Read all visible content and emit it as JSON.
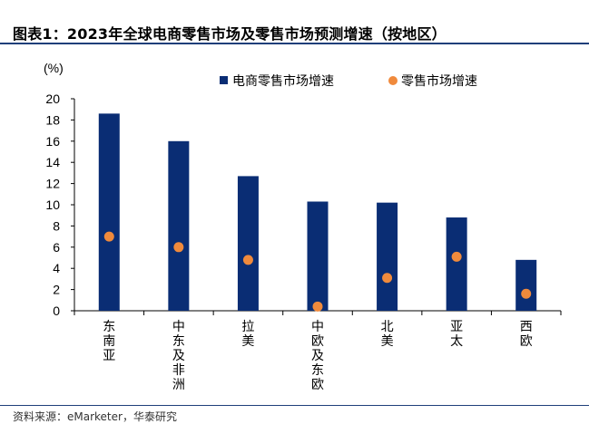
{
  "header": {
    "title": "图表1：2023年全球电商零售市场及零售市场预测增速（按地区）"
  },
  "footer": {
    "source": "资料来源：eMarketer，华泰研究"
  },
  "chart_data": {
    "type": "bar",
    "unit_label": "(%)",
    "categories": [
      "东南亚",
      "中东及非洲",
      "拉美",
      "中欧及东欧",
      "北美",
      "亚太",
      "西欧"
    ],
    "series": [
      {
        "name": "电商零售市场增速",
        "kind": "bar",
        "color": "#0a2d74",
        "values": [
          18.6,
          16.0,
          12.7,
          10.3,
          10.2,
          8.8,
          4.8
        ]
      },
      {
        "name": "零售市场增速",
        "kind": "marker",
        "color": "#f08a3c",
        "values": [
          7.0,
          6.0,
          4.8,
          0.4,
          3.1,
          5.1,
          1.6
        ]
      }
    ],
    "ylim": [
      0,
      20
    ],
    "yticks": [
      "0",
      "2",
      "4",
      "6",
      "8",
      "10",
      "12",
      "14",
      "16",
      "18",
      "20"
    ],
    "legend_position": "top-right",
    "grid": false
  }
}
